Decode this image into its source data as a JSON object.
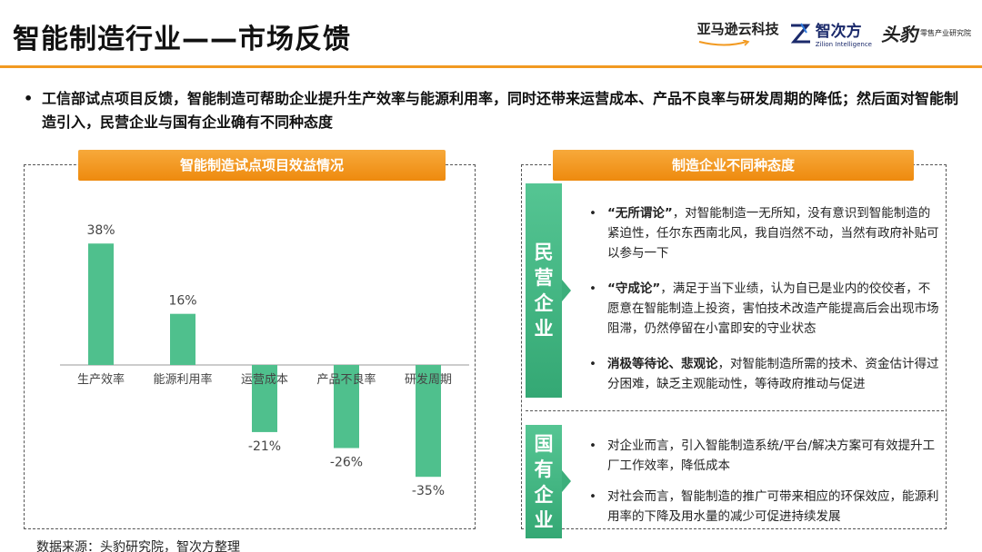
{
  "title": "智能制造行业——市场反馈",
  "logos": {
    "amazon": "亚马逊云科技",
    "zhiciyuan_cn": "智次方",
    "zhiciyuan_en": "Zilion Intelligence",
    "leopard_mark": "头豹",
    "leopard_sub": "零售产业研究院"
  },
  "intro": {
    "bullet": "•",
    "text": "工信部试点项目反馈，智能制造可帮助企业提升生产效率与能源利用率，同时还带来运营成本、产品不良率与研发周期的降低；然后面对智能制造引入，民营企业与国有企业确有不同种态度"
  },
  "left_panel": {
    "header": "智能制造试点项目效益情况"
  },
  "right_panel": {
    "header": "制造企业不同种态度",
    "private": {
      "label": "民营企业",
      "items": [
        {
          "term": "“无所谓论”",
          "rest": "，对智能制造一无所知，没有意识到智能制造的紧迫性，任尔东西南北风，我自岿然不动，当然有政府补贴可以参与一下"
        },
        {
          "term": "“守成论”",
          "rest": "，满足于当下业绩，认为自已是业内的佼佼者，不愿意在智能制造上投资，害怕技术改造产能提高后会出现市场阻滞，仍然停留在小富即安的守业状态"
        },
        {
          "term": "消极等待论、悲观论",
          "rest": "，对智能制造所需的技术、资金估计得过分困难，缺乏主观能动性，等待政府推动与促进"
        }
      ]
    },
    "state": {
      "label": "国有企业",
      "items": [
        {
          "term": "",
          "rest": "对企业而言，引入智能制造系统/平台/解决方案可有效提升工厂工作效率，降低成本"
        },
        {
          "term": "",
          "rest": "对社会而言，智能制造的推广可带来相应的环保效应，能源利用率的下降及用水量的减少可促进持续发展"
        }
      ]
    }
  },
  "source": "数据来源：头豹研究院，智次方整理",
  "colors": {
    "accent": "#f29a21",
    "bar": "#4fc08d",
    "header": "#ee8a0e"
  },
  "chart_data": {
    "type": "bar",
    "title": "智能制造试点项目效益情况",
    "categories": [
      "生产效率",
      "能源利用率",
      "运营成本",
      "产品不良率",
      "研发周期"
    ],
    "values": [
      38,
      16,
      -21,
      -26,
      -35
    ],
    "data_labels": [
      "38%",
      "16%",
      "-21%",
      "-26%",
      "-35%"
    ],
    "unit": "%",
    "xlabel": "",
    "ylabel": "",
    "ylim": [
      -40,
      45
    ],
    "grid": false,
    "legend": "none"
  }
}
